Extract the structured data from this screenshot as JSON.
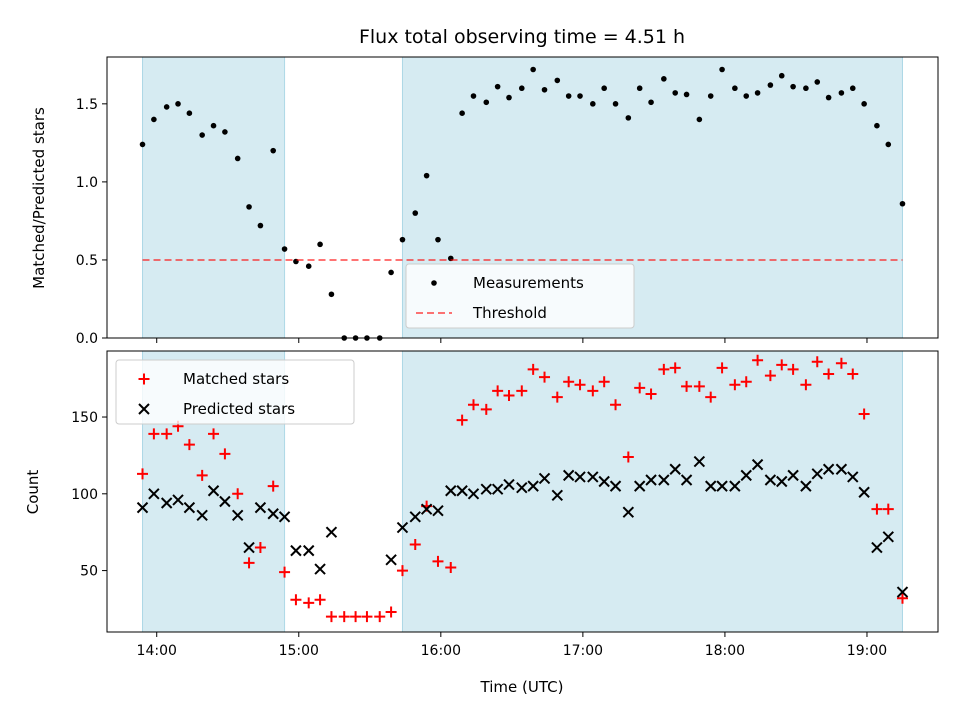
{
  "chart_data": {
    "type": "scatter",
    "title": "Flux total observing time = 4.51 h",
    "xlabel": "Time (UTC)",
    "x_ticks": [
      "14:00",
      "15:00",
      "16:00",
      "17:00",
      "18:00",
      "19:00"
    ],
    "x_tick_hours": [
      14,
      15,
      16,
      17,
      18,
      19
    ],
    "xlim": [
      13.65,
      19.5
    ],
    "highlight_color": "#add8e6",
    "highlight_ranges": [
      [
        13.9,
        14.9
      ],
      [
        15.73,
        19.25
      ]
    ],
    "times": [
      13.9,
      13.98,
      14.07,
      14.15,
      14.23,
      14.32,
      14.4,
      14.48,
      14.57,
      14.65,
      14.73,
      14.82,
      14.9,
      14.98,
      15.07,
      15.15,
      15.23,
      15.32,
      15.4,
      15.48,
      15.57,
      15.65,
      15.73,
      15.82,
      15.9,
      15.98,
      16.07,
      16.15,
      16.23,
      16.32,
      16.4,
      16.48,
      16.57,
      16.65,
      16.73,
      16.82,
      16.9,
      16.98,
      17.07,
      17.15,
      17.23,
      17.32,
      17.4,
      17.48,
      17.57,
      17.65,
      17.73,
      17.82,
      17.9,
      17.98,
      18.07,
      18.15,
      18.23,
      18.32,
      18.4,
      18.48,
      18.57,
      18.65,
      18.73,
      18.82,
      18.9,
      18.98,
      19.07,
      19.15,
      19.25
    ],
    "panels": [
      {
        "ylabel": "Matched/Predicted stars",
        "ylim": [
          0,
          1.8
        ],
        "y_ticks": [
          0,
          0.5,
          1.0,
          1.5
        ],
        "y_tick_labels": [
          "0.0",
          "0.5",
          "1.0",
          "1.5"
        ],
        "threshold": 0.5,
        "legend_position": "lower-center",
        "series": [
          {
            "name": "Measurements",
            "marker": "dot",
            "color": "#000000",
            "values": [
              1.24,
              1.4,
              1.48,
              1.5,
              1.44,
              1.3,
              1.36,
              1.32,
              1.15,
              0.84,
              0.72,
              1.2,
              0.57,
              0.49,
              0.46,
              0.6,
              0.28,
              0.0,
              0.0,
              0.0,
              0.0,
              0.42,
              0.63,
              0.8,
              1.04,
              0.63,
              0.51,
              1.44,
              1.55,
              1.51,
              1.61,
              1.54,
              1.6,
              1.72,
              1.59,
              1.65,
              1.55,
              1.55,
              1.5,
              1.6,
              1.5,
              1.41,
              1.6,
              1.51,
              1.66,
              1.57,
              1.56,
              1.4,
              1.55,
              1.72,
              1.6,
              1.55,
              1.57,
              1.62,
              1.68,
              1.61,
              1.6,
              1.64,
              1.54,
              1.57,
              1.6,
              1.5,
              1.36,
              1.24,
              0.86
            ]
          },
          {
            "name": "Threshold",
            "marker": "dashed-line",
            "color": "#ff0000",
            "values": [
              0.5
            ]
          }
        ]
      },
      {
        "ylabel": "Count",
        "ylim": [
          10,
          193
        ],
        "y_ticks": [
          50,
          100,
          150
        ],
        "y_tick_labels": [
          "50",
          "100",
          "150"
        ],
        "legend_position": "upper-left",
        "series": [
          {
            "name": "Matched stars",
            "marker": "plus",
            "color": "#ff0000",
            "values": [
              113,
              139,
              139,
              144,
              132,
              112,
              139,
              126,
              100,
              55,
              65,
              105,
              49,
              31,
              29,
              31,
              20,
              20,
              20,
              20,
              20,
              23,
              50,
              67,
              92,
              56,
              52,
              148,
              158,
              155,
              167,
              164,
              167,
              181,
              176,
              163,
              173,
              171,
              167,
              173,
              158,
              124,
              169,
              165,
              181,
              182,
              170,
              170,
              163,
              182,
              171,
              173,
              187,
              177,
              184,
              181,
              171,
              186,
              178,
              185,
              178,
              152,
              90,
              90,
              32
            ]
          },
          {
            "name": "Predicted stars",
            "marker": "x",
            "color": "#000000",
            "values": [
              91,
              100,
              94,
              96,
              91,
              86,
              102,
              95,
              86,
              65,
              91,
              87,
              85,
              63,
              63,
              51,
              75,
              null,
              null,
              null,
              null,
              57,
              78,
              85,
              90,
              89,
              102,
              102,
              100,
              103,
              103,
              106,
              104,
              105,
              110,
              99,
              112,
              111,
              111,
              108,
              105,
              88,
              105,
              109,
              109,
              116,
              109,
              121,
              105,
              105,
              105,
              112,
              119,
              109,
              108,
              112,
              105,
              113,
              116,
              116,
              111,
              101,
              65,
              72,
              36
            ]
          }
        ]
      }
    ]
  }
}
